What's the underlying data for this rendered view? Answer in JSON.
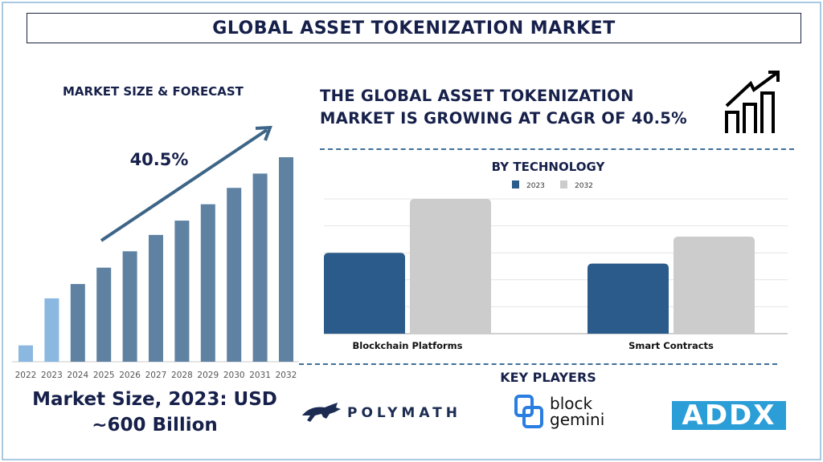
{
  "header": {
    "title": "GLOBAL ASSET TOKENIZATION MARKET"
  },
  "left_panel": {
    "title": "MARKET SIZE & FORECAST",
    "cagr_label": "40.5%",
    "market_size_line1": "Market Size, 2023: USD",
    "market_size_line2": "~600 Billion"
  },
  "headline": {
    "line1": "THE GLOBAL ASSET TOKENIZATION",
    "line2": "MARKET IS GROWING AT CAGR OF 40.5%",
    "icon": "growth-chart-icon"
  },
  "key_players": {
    "title": "KEY PLAYERS",
    "logos": [
      {
        "name": "POLYMATH",
        "color": "#1b2b52"
      },
      {
        "name_line1": "block",
        "name_line2": "gemini",
        "color": "#2a7de1"
      },
      {
        "name": "ADDX",
        "color": "#2b9ed8"
      }
    ]
  },
  "chart_data": [
    {
      "type": "bar",
      "title": "MARKET SIZE & FORECAST",
      "categories": [
        "2022",
        "2023",
        "2024",
        "2025",
        "2026",
        "2027",
        "2028",
        "2029",
        "2030",
        "2031",
        "2032"
      ],
      "values": [
        8,
        31,
        38,
        46,
        54,
        62,
        69,
        77,
        85,
        92,
        100
      ],
      "colors": {
        "historical": "#8ab8e0",
        "forecast": "#5f82a3"
      },
      "historical_categories": [
        "2022",
        "2023"
      ],
      "annotation": "40.5%",
      "xlabel": "",
      "ylabel": "",
      "ylim": [
        0,
        100
      ],
      "grid": false,
      "legend": "none"
    },
    {
      "type": "bar",
      "title": "BY TECHNOLOGY",
      "categories": [
        "Blockchain Platforms",
        "Smart Contracts"
      ],
      "series": [
        {
          "name": "2023",
          "values": [
            3.0,
            2.6
          ],
          "color": "#2a5b8a"
        },
        {
          "name": "2032",
          "values": [
            5.0,
            3.6
          ],
          "color": "#cccccc"
        }
      ],
      "xlabel": "",
      "ylabel": "",
      "ylim": [
        0,
        5
      ],
      "grid": true,
      "legend": "top-center"
    }
  ]
}
